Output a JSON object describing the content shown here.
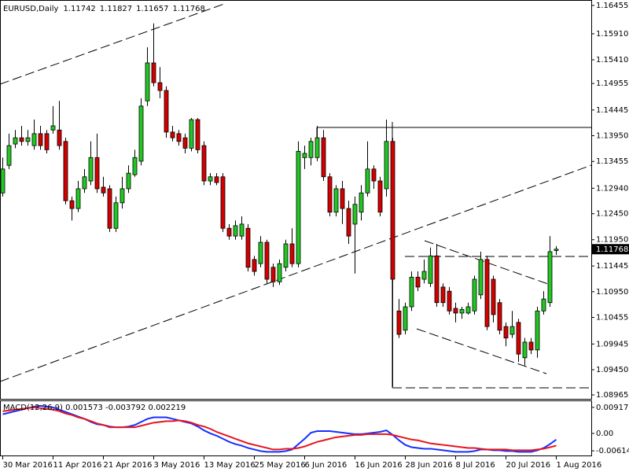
{
  "chart_data": [
    {
      "type": "candlestick",
      "title": "EURUSD,Daily",
      "up_color": "#22c822",
      "down_color": "#d40000",
      "outline_color": "#000000",
      "categories": [
        "30 Mar 2016",
        null,
        null,
        null,
        null,
        null,
        null,
        null,
        "11 Apr 2016",
        null,
        null,
        null,
        null,
        null,
        null,
        null,
        "21 Apr 2016",
        null,
        null,
        null,
        null,
        null,
        null,
        null,
        "3 May 2016",
        null,
        null,
        null,
        null,
        null,
        null,
        null,
        "13 May 2016",
        null,
        null,
        null,
        null,
        null,
        null,
        null,
        "25 May 2016",
        null,
        null,
        null,
        null,
        null,
        null,
        null,
        "6 Jun 2016",
        null,
        null,
        null,
        null,
        null,
        null,
        null,
        "16 Jun 2016",
        null,
        null,
        null,
        null,
        null,
        null,
        null,
        "28 Jun 2016",
        null,
        null,
        null,
        null,
        null,
        null,
        null,
        "8 Jul 2016",
        null,
        null,
        null,
        null,
        null,
        null,
        null,
        "20 Jul 2016",
        null,
        null,
        null,
        null,
        null,
        null,
        null,
        "1 Aug 2016"
      ],
      "open": [
        1.1285,
        1.1338,
        1.1379,
        1.1391,
        1.1384,
        1.1376,
        1.1399,
        1.1399,
        1.1406,
        1.1406,
        1.1384,
        1.127,
        1.1255,
        1.1293,
        1.1308,
        1.1353,
        1.1296,
        1.1293,
        1.1217,
        1.1266,
        1.1293,
        1.132,
        1.1346,
        1.1462,
        1.1535,
        1.1497,
        1.1482,
        1.1402,
        1.1399,
        1.1391,
        1.1371,
        1.1426,
        1.1376,
        1.1308,
        1.1316,
        1.1316,
        1.1217,
        1.1202,
        1.1202,
        1.1217,
        1.1157,
        1.1149,
        1.119,
        1.1142,
        1.1114,
        1.1142,
        1.1187,
        1.1149,
        1.1353,
        1.1353,
        1.1353,
        1.1391,
        1.1316,
        1.1248,
        1.1293,
        1.1255,
        1.1225,
        1.1248,
        1.1285,
        1.1331,
        1.1308,
        1.1293,
        1.1384,
        1.1058,
        1.1021,
        1.1066,
        1.1123,
        1.1119,
        1.1111,
        1.1164,
        1.1104,
        1.1096,
        1.1063,
        1.1054,
        1.1054,
        1.1058,
        1.1089,
        1.1157,
        1.1119,
        1.1074,
        1.1028,
        1.1013,
        1.1036,
        1.0968,
        1.0998,
        1.0983,
        1.1058,
        1.1074,
        1.11742
      ],
      "high": [
        1.1353,
        1.1399,
        1.1406,
        1.1414,
        1.1406,
        1.1426,
        1.1414,
        1.1406,
        1.1452,
        1.1462,
        1.1391,
        1.1278,
        1.1308,
        1.1331,
        1.1384,
        1.1399,
        1.1316,
        1.13,
        1.1278,
        1.1316,
        1.1338,
        1.1368,
        1.1467,
        1.1565,
        1.1611,
        1.1527,
        1.149,
        1.1414,
        1.1406,
        1.1399,
        1.1429,
        1.1429,
        1.1384,
        1.1323,
        1.1323,
        1.1323,
        1.1225,
        1.1232,
        1.124,
        1.1225,
        1.1164,
        1.1202,
        1.1195,
        1.1149,
        1.1157,
        1.1195,
        1.1217,
        1.1384,
        1.1376,
        1.1391,
        1.1414,
        1.1406,
        1.1323,
        1.13,
        1.1308,
        1.127,
        1.1278,
        1.13,
        1.1384,
        1.1338,
        1.1316,
        1.1426,
        1.1391,
        1.1081,
        1.1074,
        1.1134,
        1.1134,
        1.1157,
        1.118,
        1.1187,
        1.1111,
        1.1104,
        1.1074,
        1.1066,
        1.1074,
        1.1126,
        1.1172,
        1.1164,
        1.1126,
        1.1081,
        1.1036,
        1.1058,
        1.1043,
        1.1006,
        1.1006,
        1.1066,
        1.1096,
        1.1202,
        1.11827
      ],
      "low": [
        1.1278,
        1.1331,
        1.1371,
        1.1376,
        1.1376,
        1.1368,
        1.1368,
        1.1361,
        1.1399,
        1.1368,
        1.1263,
        1.1232,
        1.1248,
        1.1285,
        1.13,
        1.1285,
        1.1278,
        1.121,
        1.121,
        1.1255,
        1.1285,
        1.1316,
        1.1338,
        1.1452,
        1.149,
        1.1467,
        1.1391,
        1.1384,
        1.1376,
        1.1361,
        1.1365,
        1.1361,
        1.13,
        1.13,
        1.13,
        1.121,
        1.1195,
        1.1195,
        1.1195,
        1.1134,
        1.1126,
        1.1142,
        1.1111,
        1.1104,
        1.1108,
        1.1134,
        1.1142,
        1.1142,
        1.1331,
        1.1338,
        1.1346,
        1.1308,
        1.124,
        1.124,
        1.1225,
        1.1187,
        1.113,
        1.1232,
        1.1278,
        1.1293,
        1.124,
        1.1278,
        1.0912,
        1.1006,
        1.1013,
        1.1058,
        1.1096,
        1.1111,
        1.1104,
        1.1066,
        1.1066,
        1.1051,
        1.1036,
        1.1043,
        1.1051,
        1.1051,
        1.1081,
        1.1021,
        1.1036,
        1.1013,
        1.099,
        1.1006,
        1.096,
        1.0953,
        1.0975,
        1.0968,
        1.1051,
        1.1066,
        1.11657
      ],
      "close": [
        1.1331,
        1.1376,
        1.1391,
        1.1384,
        1.1391,
        1.1399,
        1.1376,
        1.1368,
        1.1414,
        1.1376,
        1.127,
        1.1255,
        1.1293,
        1.1316,
        1.1353,
        1.1293,
        1.1285,
        1.1217,
        1.1266,
        1.1293,
        1.1323,
        1.1353,
        1.1452,
        1.1535,
        1.1497,
        1.1482,
        1.1402,
        1.1391,
        1.1384,
        1.1371,
        1.1426,
        1.1368,
        1.1308,
        1.1316,
        1.1305,
        1.1217,
        1.1202,
        1.1222,
        1.1225,
        1.1142,
        1.1134,
        1.119,
        1.1119,
        1.1114,
        1.1149,
        1.1187,
        1.1149,
        1.1365,
        1.1361,
        1.1384,
        1.1391,
        1.1316,
        1.1248,
        1.1293,
        1.1255,
        1.1202,
        1.1263,
        1.1285,
        1.1331,
        1.1308,
        1.1248,
        1.1384,
        1.1119,
        1.1013,
        1.1066,
        1.1123,
        1.1104,
        1.1134,
        1.1164,
        1.1074,
        1.1074,
        1.1058,
        1.1054,
        1.1061,
        1.1066,
        1.1119,
        1.1157,
        1.1028,
        1.1051,
        1.1021,
        1.1006,
        1.1028,
        1.0975,
        1.0998,
        1.0983,
        1.1058,
        1.1081,
        1.1172,
        1.11768
      ],
      "ylim": [
        1.0889,
        1.1656
      ],
      "yticks": [
        1.16455,
        {
          "value": 1.1591,
          "label": "1.15910"
        },
        {
          "value": 1.1541,
          "label": "1.15410"
        },
        1.14955,
        1.14445,
        {
          "value": 1.1395,
          "label": "1.13950"
        },
        1.13455,
        {
          "value": 1.1294,
          "label": "1.12940"
        },
        {
          "value": 1.1245,
          "label": "1.12450"
        },
        {
          "value": 1.1195,
          "label": "1.11950"
        },
        1.11445,
        {
          "value": 1.1095,
          "label": "1.10950"
        },
        1.10455,
        1.09945,
        {
          "value": 1.0945,
          "label": "1.09450"
        },
        1.08965
      ],
      "grid": false
    },
    {
      "type": "line",
      "title": "MACD(12,26,9) 0.001573 -0.003792 0.002219",
      "series": [
        {
          "color": "#1430ff",
          "values": [
            0.00675,
            0.00729,
            0.00783,
            0.00837,
            0.00891,
            0.00945,
            0.00972,
            0.00945,
            0.00918,
            0.00837,
            0.00756,
            0.00675,
            0.00594,
            0.00513,
            0.00405,
            0.00324,
            0.00297,
            0.00243,
            0.00216,
            0.00216,
            0.00243,
            0.00297,
            0.00405,
            0.00513,
            0.00567,
            0.00567,
            0.00567,
            0.00513,
            0.00459,
            0.00405,
            0.00351,
            0.00243,
            0.00108,
            0,
            -0.00081,
            -0.00189,
            -0.00297,
            -0.00378,
            -0.00432,
            -0.00513,
            -0.00567,
            -0.00621,
            -0.00648,
            -0.00648,
            -0.00648,
            -0.00621,
            -0.00567,
            -0.00378,
            -0.00189,
            0.00027,
            0.00081,
            0.00081,
            0.00081,
            0.00054,
            0.00027,
            0,
            -0.00027,
            -0.00027,
            0,
            0.00027,
            0.00054,
            0.00108,
            -0.00054,
            -0.00243,
            -0.00405,
            -0.00486,
            -0.00513,
            -0.0054,
            -0.0054,
            -0.00567,
            -0.00594,
            -0.00621,
            -0.00648,
            -0.00648,
            -0.00648,
            -0.00621,
            -0.00567,
            -0.00567,
            -0.00594,
            -0.00594,
            -0.00621,
            -0.00621,
            -0.00648,
            -0.00648,
            -0.00648,
            -0.00594,
            -0.00513,
            -0.00378,
            -0.00216
          ]
        },
        {
          "color": "#e8141e",
          "values": [
            0.00783,
            0.0081,
            0.00837,
            0.00864,
            0.00891,
            0.00918,
            0.00891,
            0.00864,
            0.00837,
            0.00783,
            0.00702,
            0.00648,
            0.00567,
            0.00513,
            0.00432,
            0.00351,
            0.00297,
            0.00216,
            0.00216,
            0.00216,
            0.00216,
            0.00216,
            0.0027,
            0.00324,
            0.00378,
            0.00405,
            0.00432,
            0.00432,
            0.00459,
            0.00432,
            0.00378,
            0.00297,
            0.00243,
            0.00162,
            0.00054,
            -0.00027,
            -0.00108,
            -0.00189,
            -0.0027,
            -0.00351,
            -0.00405,
            -0.00459,
            -0.00513,
            -0.00567,
            -0.00567,
            -0.0054,
            -0.0054,
            -0.00513,
            -0.00459,
            -0.00378,
            -0.00297,
            -0.00243,
            -0.00189,
            -0.00135,
            -0.00108,
            -0.00081,
            -0.00054,
            -0.00054,
            -0.00027,
            -0.00027,
            -0.00027,
            -0.00027,
            -0.00054,
            -0.00108,
            -0.00162,
            -0.00216,
            -0.00243,
            -0.00297,
            -0.00351,
            -0.00378,
            -0.00405,
            -0.00432,
            -0.00459,
            -0.00486,
            -0.00513,
            -0.00513,
            -0.0054,
            -0.00567,
            -0.00567,
            -0.00567,
            -0.00567,
            -0.00594,
            -0.00594,
            -0.00594,
            -0.00594,
            -0.00567,
            -0.0054,
            -0.00486,
            -0.00432
          ]
        }
      ],
      "ylim": [
        -0.00805,
        0.01163
      ],
      "yticks": [
        0.009171,
        {
          "value": 0,
          "label": "0.00"
        },
        -0.00614
      ]
    }
  ]
}
